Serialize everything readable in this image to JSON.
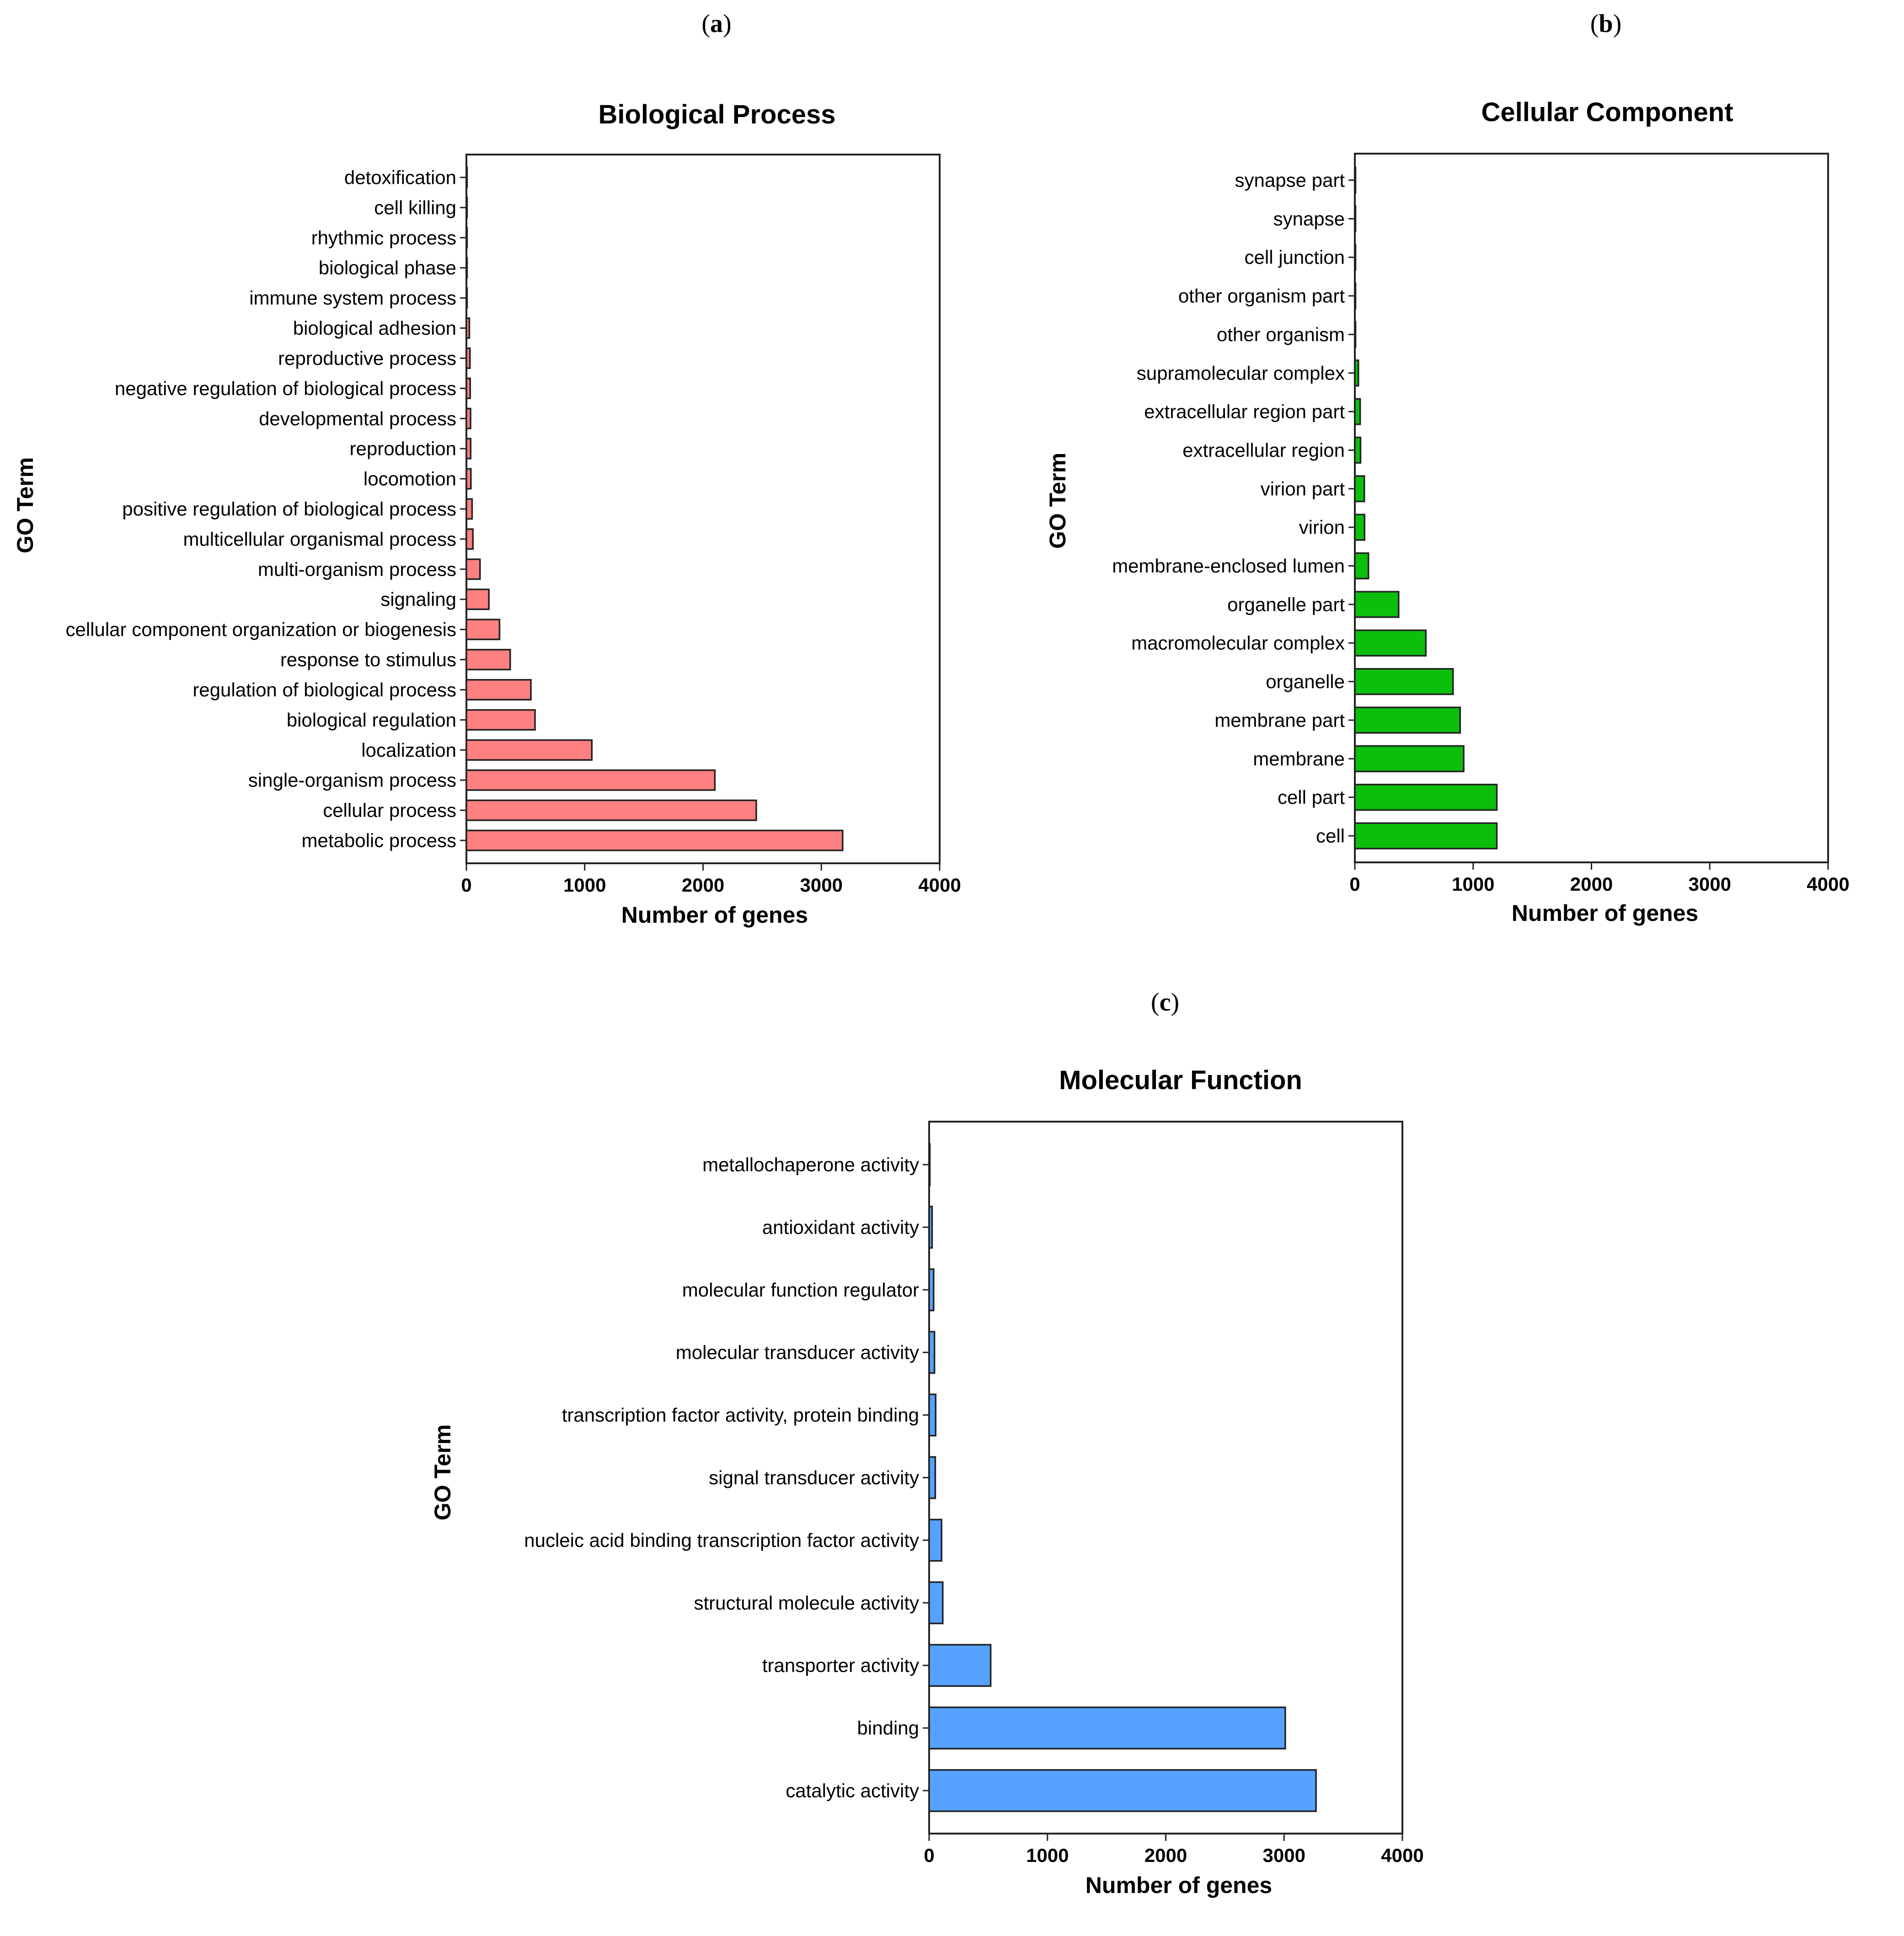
{
  "panels": [
    {
      "label": "a",
      "chart_data": {
        "type": "bar",
        "orientation": "horizontal",
        "title": "Biological Process",
        "xlabel": "Number of genes",
        "ylabel": "GO Term",
        "xlim": [
          0,
          4000
        ],
        "xticks": [
          0,
          1000,
          2000,
          3000,
          4000
        ],
        "color": "#ff8080",
        "categories": [
          "detoxification",
          "cell killing",
          "rhythmic process",
          "biological phase",
          "immune system process",
          "biological adhesion",
          "reproductive process",
          "negative regulation of biological process",
          "developmental process",
          "reproduction",
          "locomotion",
          "positive regulation of biological process",
          "multicellular organismal process",
          "multi-organism process",
          "signaling",
          "cellular component organization or biogenesis",
          "response to stimulus",
          "regulation of biological process",
          "biological regulation",
          "localization",
          "single-organism process",
          "cellular process",
          "metabolic process"
        ],
        "values": [
          2,
          3,
          3,
          4,
          5,
          25,
          30,
          32,
          35,
          36,
          38,
          48,
          55,
          115,
          190,
          280,
          370,
          545,
          580,
          1060,
          2100,
          2450,
          3180
        ]
      }
    },
    {
      "label": "b",
      "chart_data": {
        "type": "bar",
        "orientation": "horizontal",
        "title": "Cellular Component",
        "xlabel": "Number of genes",
        "ylabel": "GO Term",
        "xlim": [
          0,
          4000
        ],
        "xticks": [
          0,
          1000,
          2000,
          3000,
          4000
        ],
        "color": "#0dbf0d",
        "categories": [
          "synapse part",
          "synapse",
          "cell junction",
          "other organism part",
          "other organism",
          "supramolecular complex",
          "extracellular region part",
          "extracellular region",
          "virion part",
          "virion",
          "membrane-enclosed lumen",
          "organelle part",
          "macromolecular complex",
          "organelle",
          "membrane part",
          "membrane",
          "cell part",
          "cell"
        ],
        "values": [
          2,
          3,
          4,
          5,
          6,
          30,
          45,
          48,
          80,
          82,
          115,
          370,
          600,
          830,
          890,
          920,
          1200,
          1200
        ]
      }
    },
    {
      "label": "c",
      "chart_data": {
        "type": "bar",
        "orientation": "horizontal",
        "title": "Molecular Function",
        "xlabel": "Number of genes",
        "ylabel": "GO Term",
        "xlim": [
          0,
          4000
        ],
        "xticks": [
          0,
          1000,
          2000,
          3000,
          4000
        ],
        "color": "#56a2ff",
        "categories": [
          "metallochaperone activity",
          "antioxidant activity",
          "molecular function regulator",
          "molecular transducer activity",
          "transcription factor activity, protein binding",
          "signal transducer activity",
          "nucleic acid binding transcription factor activity",
          "structural molecule activity",
          "transporter activity",
          "binding",
          "catalytic activity"
        ],
        "values": [
          3,
          25,
          38,
          45,
          55,
          52,
          105,
          115,
          520,
          3010,
          3270
        ]
      }
    }
  ]
}
